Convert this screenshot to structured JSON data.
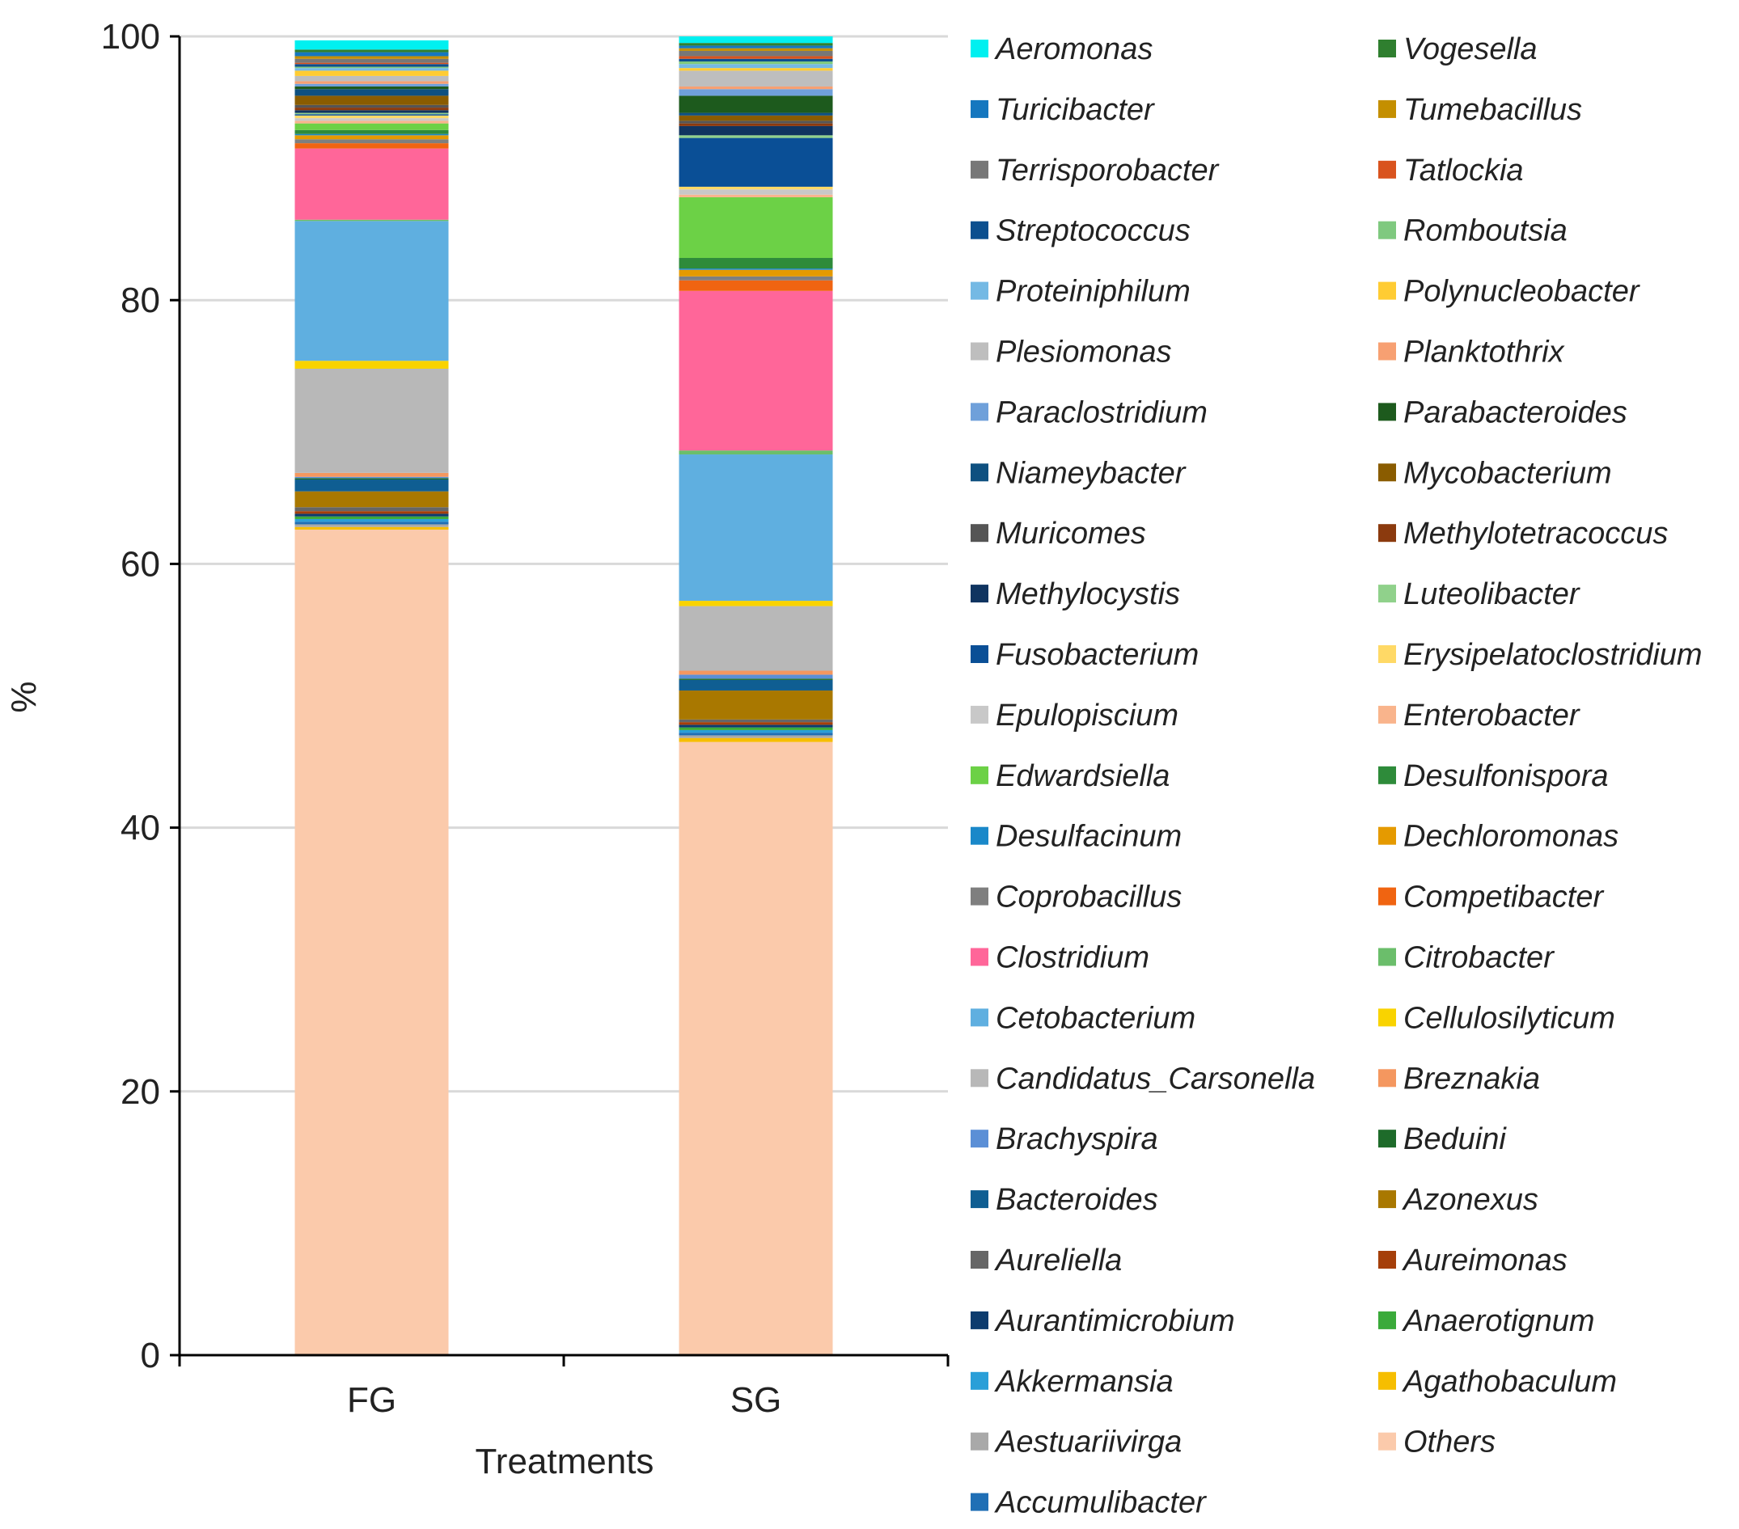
{
  "chart_data": {
    "type": "bar",
    "stacked": true,
    "title": "",
    "xlabel": "Treatments",
    "ylabel": "%",
    "ylim": [
      0,
      100
    ],
    "yticks": [
      0,
      20,
      40,
      60,
      80,
      100
    ],
    "gridlines": true,
    "legend_position": "right",
    "categories": [
      "FG",
      "SG"
    ],
    "series": [
      {
        "name": "Others",
        "color": "#FBCAAB",
        "values": [
          62.6,
          46.5
        ]
      },
      {
        "name": "Agathobaculum",
        "color": "#F6BE00",
        "values": [
          0.2,
          0.3
        ]
      },
      {
        "name": "Aestuariivirga",
        "color": "#A9A9A9",
        "values": [
          0.2,
          0.2
        ]
      },
      {
        "name": "Accumulibacter",
        "color": "#1F6FB5",
        "values": [
          0.2,
          0.2
        ]
      },
      {
        "name": "Akkermansia",
        "color": "#2A9FD8",
        "values": [
          0.2,
          0.2
        ]
      },
      {
        "name": "Anaerotignum",
        "color": "#3AAA3A",
        "values": [
          0.2,
          0.2
        ]
      },
      {
        "name": "Aurantimicrobium",
        "color": "#0D3C6E",
        "values": [
          0.2,
          0.2
        ]
      },
      {
        "name": "Aureimonas",
        "color": "#A53F0A",
        "values": [
          0.2,
          0.2
        ]
      },
      {
        "name": "Aureliella",
        "color": "#666666",
        "values": [
          0.3,
          0.2
        ]
      },
      {
        "name": "Azonexus",
        "color": "#A97800",
        "values": [
          1.2,
          2.2
        ]
      },
      {
        "name": "Bacteroides",
        "color": "#0F5E92",
        "values": [
          0.9,
          0.8
        ]
      },
      {
        "name": "Beduini",
        "color": "#1E6B2A",
        "values": [
          0.1,
          0.1
        ]
      },
      {
        "name": "Brachyspira",
        "color": "#5B8FD6",
        "values": [
          0.1,
          0.3
        ]
      },
      {
        "name": "Breznakia",
        "color": "#F4975F",
        "values": [
          0.3,
          0.3
        ]
      },
      {
        "name": "Candidatus_Carsonella",
        "color": "#B8B8B8",
        "values": [
          7.9,
          4.9
        ]
      },
      {
        "name": "Cellulosilyticum",
        "color": "#F9D300",
        "values": [
          0.6,
          0.4
        ]
      },
      {
        "name": "Cetobacterium",
        "color": "#5FAFE0",
        "values": [
          10.6,
          11.1
        ]
      },
      {
        "name": "Citrobacter",
        "color": "#6BBE6B",
        "values": [
          0.1,
          0.3
        ]
      },
      {
        "name": "Clostridium",
        "color": "#FF6699",
        "values": [
          5.4,
          12.1
        ]
      },
      {
        "name": "Competibacter",
        "color": "#F06411",
        "values": [
          0.4,
          0.8
        ]
      },
      {
        "name": "Coprobacillus",
        "color": "#7F7F7F",
        "values": [
          0.3,
          0.3
        ]
      },
      {
        "name": "Dechloromonas",
        "color": "#E59A00",
        "values": [
          0.3,
          0.5
        ]
      },
      {
        "name": "Desulfacinum",
        "color": "#1A88C9",
        "values": [
          0.1,
          0.1
        ]
      },
      {
        "name": "Desulfonispora",
        "color": "#2E8B3A",
        "values": [
          0.3,
          0.8
        ]
      },
      {
        "name": "Edwardsiella",
        "color": "#6CD146",
        "values": [
          0.5,
          4.6
        ]
      },
      {
        "name": "Enterobacter",
        "color": "#F9B48C",
        "values": [
          0.2,
          0.2
        ]
      },
      {
        "name": "Epulopiscium",
        "color": "#C8C8C8",
        "values": [
          0.2,
          0.4
        ]
      },
      {
        "name": "Erysipelatoclostridium",
        "color": "#FFD966",
        "values": [
          0.2,
          0.2
        ]
      },
      {
        "name": "Fusobacterium",
        "color": "#0A4F96",
        "values": [
          0.1,
          3.7
        ]
      },
      {
        "name": "Luteolibacter",
        "color": "#90D18B",
        "values": [
          0.1,
          0.2
        ]
      },
      {
        "name": "Methylocystis",
        "color": "#0F3460",
        "values": [
          0.2,
          0.7
        ]
      },
      {
        "name": "Methylotetracoccus",
        "color": "#8B3A0E",
        "values": [
          0.2,
          0.2
        ]
      },
      {
        "name": "Muricomes",
        "color": "#555555",
        "values": [
          0.2,
          0.2
        ]
      },
      {
        "name": "Mycobacterium",
        "color": "#8A5C00",
        "values": [
          0.7,
          0.4
        ]
      },
      {
        "name": "Niameybacter",
        "color": "#0E5080",
        "values": [
          0.5,
          0.2
        ]
      },
      {
        "name": "Parabacteroides",
        "color": "#1D5A1D",
        "values": [
          0.2,
          1.3
        ]
      },
      {
        "name": "Paraclostridium",
        "color": "#6FA0DA",
        "values": [
          0.2,
          0.5
        ]
      },
      {
        "name": "Planktothrix",
        "color": "#F7A072",
        "values": [
          0.2,
          0.2
        ]
      },
      {
        "name": "Plesiomonas",
        "color": "#BEBEBE",
        "values": [
          0.4,
          1.2
        ]
      },
      {
        "name": "Polynucleobacter",
        "color": "#FFCC33",
        "values": [
          0.4,
          0.2
        ]
      },
      {
        "name": "Proteiniphilum",
        "color": "#74B9E4",
        "values": [
          0.2,
          0.3
        ]
      },
      {
        "name": "Romboutsia",
        "color": "#7FC97F",
        "values": [
          0.1,
          0.2
        ]
      },
      {
        "name": "Streptococcus",
        "color": "#0B4F8F",
        "values": [
          0.2,
          0.2
        ]
      },
      {
        "name": "Tatlockia",
        "color": "#D9531E",
        "values": [
          0.1,
          0.2
        ]
      },
      {
        "name": "Terrisporobacter",
        "color": "#777777",
        "values": [
          0.3,
          0.4
        ]
      },
      {
        "name": "Tumebacillus",
        "color": "#C48F00",
        "values": [
          0.2,
          0.2
        ]
      },
      {
        "name": "Turicibacter",
        "color": "#1577BF",
        "values": [
          0.3,
          0.2
        ]
      },
      {
        "name": "Vogesella",
        "color": "#2F7F2F",
        "values": [
          0.2,
          0.2
        ]
      },
      {
        "name": "Aeromonas",
        "color": "#00F0F0",
        "values": [
          0.7,
          2.4
        ]
      }
    ],
    "legend_entries": [
      {
        "name": "Aeromonas",
        "color": "#00F0F0"
      },
      {
        "name": "Vogesella",
        "color": "#2F7F2F"
      },
      {
        "name": "Turicibacter",
        "color": "#1577BF"
      },
      {
        "name": "Tumebacillus",
        "color": "#C48F00"
      },
      {
        "name": "Terrisporobacter",
        "color": "#777777"
      },
      {
        "name": "Tatlockia",
        "color": "#D9531E"
      },
      {
        "name": "Streptococcus",
        "color": "#0B4F8F"
      },
      {
        "name": "Romboutsia",
        "color": "#7FC97F"
      },
      {
        "name": "Proteiniphilum",
        "color": "#74B9E4"
      },
      {
        "name": "Polynucleobacter",
        "color": "#FFCC33"
      },
      {
        "name": "Plesiomonas",
        "color": "#BEBEBE"
      },
      {
        "name": "Planktothrix",
        "color": "#F7A072"
      },
      {
        "name": "Paraclostridium",
        "color": "#6FA0DA"
      },
      {
        "name": "Parabacteroides",
        "color": "#1D5A1D"
      },
      {
        "name": "Niameybacter",
        "color": "#0E5080"
      },
      {
        "name": "Mycobacterium",
        "color": "#8A5C00"
      },
      {
        "name": "Muricomes",
        "color": "#555555"
      },
      {
        "name": "Methylotetracoccus",
        "color": "#8B3A0E"
      },
      {
        "name": "Methylocystis",
        "color": "#0F3460"
      },
      {
        "name": "Luteolibacter",
        "color": "#90D18B"
      },
      {
        "name": "Fusobacterium",
        "color": "#0A4F96"
      },
      {
        "name": "Erysipelatoclostridium",
        "color": "#FFD966"
      },
      {
        "name": "Epulopiscium",
        "color": "#C8C8C8"
      },
      {
        "name": "Enterobacter",
        "color": "#F9B48C"
      },
      {
        "name": "Edwardsiella",
        "color": "#6CD146"
      },
      {
        "name": "Desulfonispora",
        "color": "#2E8B3A"
      },
      {
        "name": "Desulfacinum",
        "color": "#1A88C9"
      },
      {
        "name": "Dechloromonas",
        "color": "#E59A00"
      },
      {
        "name": "Coprobacillus",
        "color": "#7F7F7F"
      },
      {
        "name": "Competibacter",
        "color": "#F06411"
      },
      {
        "name": "Clostridium",
        "color": "#FF6699"
      },
      {
        "name": "Citrobacter",
        "color": "#6BBE6B"
      },
      {
        "name": "Cetobacterium",
        "color": "#5FAFE0"
      },
      {
        "name": "Cellulosilyticum",
        "color": "#F9D300"
      },
      {
        "name": "Candidatus_Carsonella",
        "color": "#B8B8B8"
      },
      {
        "name": "Breznakia",
        "color": "#F4975F"
      },
      {
        "name": "Brachyspira",
        "color": "#5B8FD6"
      },
      {
        "name": "Beduini",
        "color": "#1E6B2A"
      },
      {
        "name": "Bacteroides",
        "color": "#0F5E92"
      },
      {
        "name": "Azonexus",
        "color": "#A97800"
      },
      {
        "name": "Aureliella",
        "color": "#666666"
      },
      {
        "name": "Aureimonas",
        "color": "#A53F0A"
      },
      {
        "name": "Aurantimicrobium",
        "color": "#0D3C6E"
      },
      {
        "name": "Anaerotignum",
        "color": "#3AAA3A"
      },
      {
        "name": "Akkermansia",
        "color": "#2A9FD8"
      },
      {
        "name": "Agathobaculum",
        "color": "#F6BE00"
      },
      {
        "name": "Aestuariivirga",
        "color": "#A9A9A9"
      },
      {
        "name": "Others",
        "color": "#FBCAAB"
      },
      {
        "name": "Accumulibacter",
        "color": "#1F6FB5"
      }
    ]
  }
}
